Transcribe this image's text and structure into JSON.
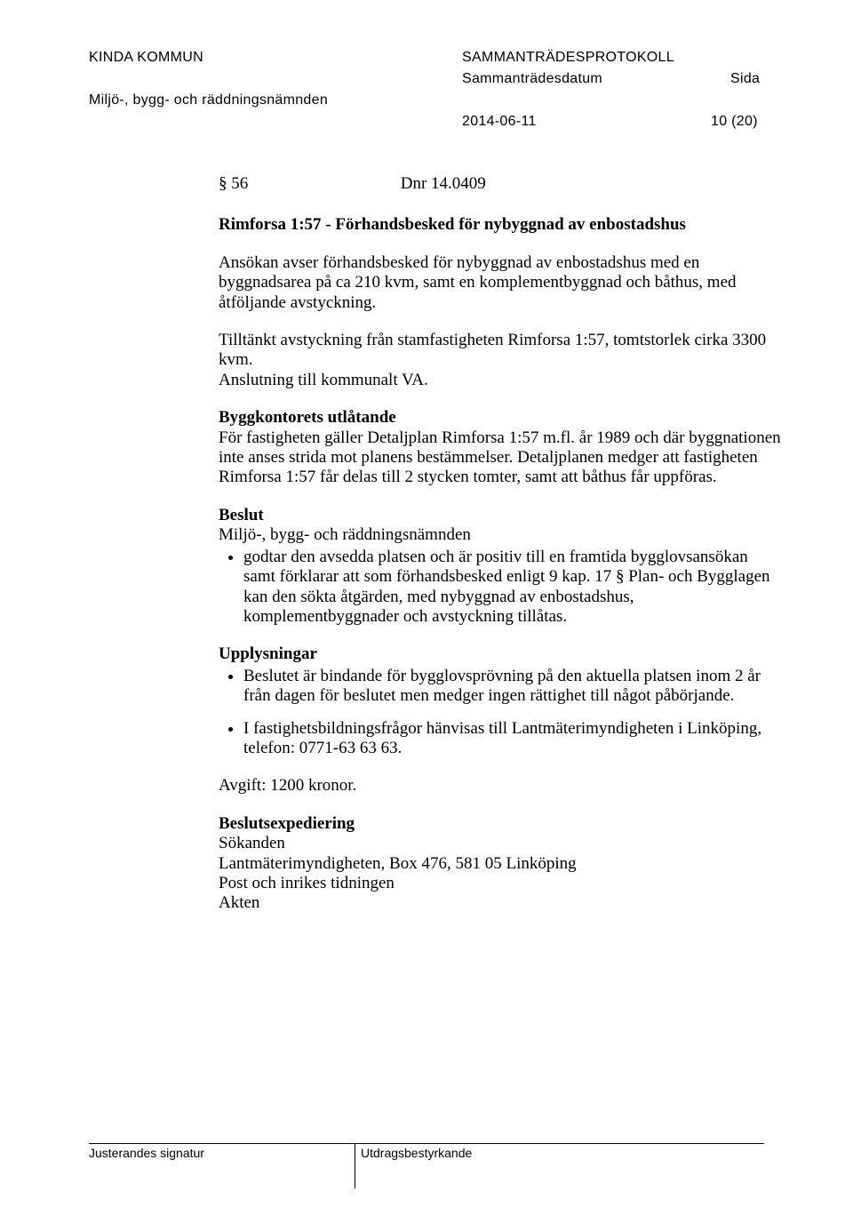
{
  "header": {
    "org": "KINDA KOMMUN",
    "committee": "Miljö-, bygg- och räddningsnämnden",
    "doc_type": "SAMMANTRÄDESPROTOKOLL",
    "date_label": "Sammanträdesdatum",
    "side_label": "Sida",
    "date": "2014-06-11",
    "page": "10 (20)"
  },
  "doc": {
    "section_no": "§ 56",
    "dnr": "Dnr 14.0409",
    "title": "Rimforsa 1:57 - Förhandsbesked för nybyggnad av enbostadshus",
    "p1": "Ansökan avser förhandsbesked för nybyggnad av enbostadshus med en byggnadsarea på ca 210 kvm, samt en komplementbyggnad och båthus, med åtföljande avstyckning.",
    "p2": "Tilltänkt avstyckning från stamfastigheten Rimforsa 1:57, tomtstorlek cirka 3300 kvm.",
    "p3": "Anslutning till kommunalt VA.",
    "h_byggkontoret": "Byggkontorets utlåtande",
    "p_byggkontoret": "För fastigheten gäller Detaljplan Rimforsa 1:57 m.fl. år 1989 och där byggnationen inte anses strida mot planens bestämmelser. Detaljplanen medger att fastigheten Rimforsa 1:57 får delas till 2 stycken tomter, samt att båthus får uppföras.",
    "h_beslut": "Beslut",
    "beslut_line": "Miljö-, bygg- och räddningsnämnden",
    "beslut_item": "godtar den avsedda platsen och är positiv till en framtida bygglovsansökan samt förklarar att som förhandsbesked enligt 9 kap. 17 § Plan- och Bygglagen kan den sökta åtgärden, med nybyggnad av enbostadshus, komplementbyggnader och avstyckning tillåtas.",
    "h_uppl": "Upplysningar",
    "uppl_items": [
      "Beslutet är bindande för bygglovsprövning på den aktuella platsen inom 2 år från dagen för beslutet men medger ingen rättighet till något påbörjande.",
      "I fastighetsbildningsfrågor hänvisas till Lantmäterimyndigheten i Linköping, telefon: 0771-63 63 63."
    ],
    "avgift": "Avgift: 1200 kronor.",
    "h_exped": "Beslutsexpediering",
    "exped_lines": [
      "Sökanden",
      "Lantmäterimyndigheten, Box 476, 581 05 Linköping",
      "Post och inrikes tidningen",
      "Akten"
    ]
  },
  "footer": {
    "left": "Justerandes signatur",
    "right": "Utdragsbestyrkande"
  }
}
